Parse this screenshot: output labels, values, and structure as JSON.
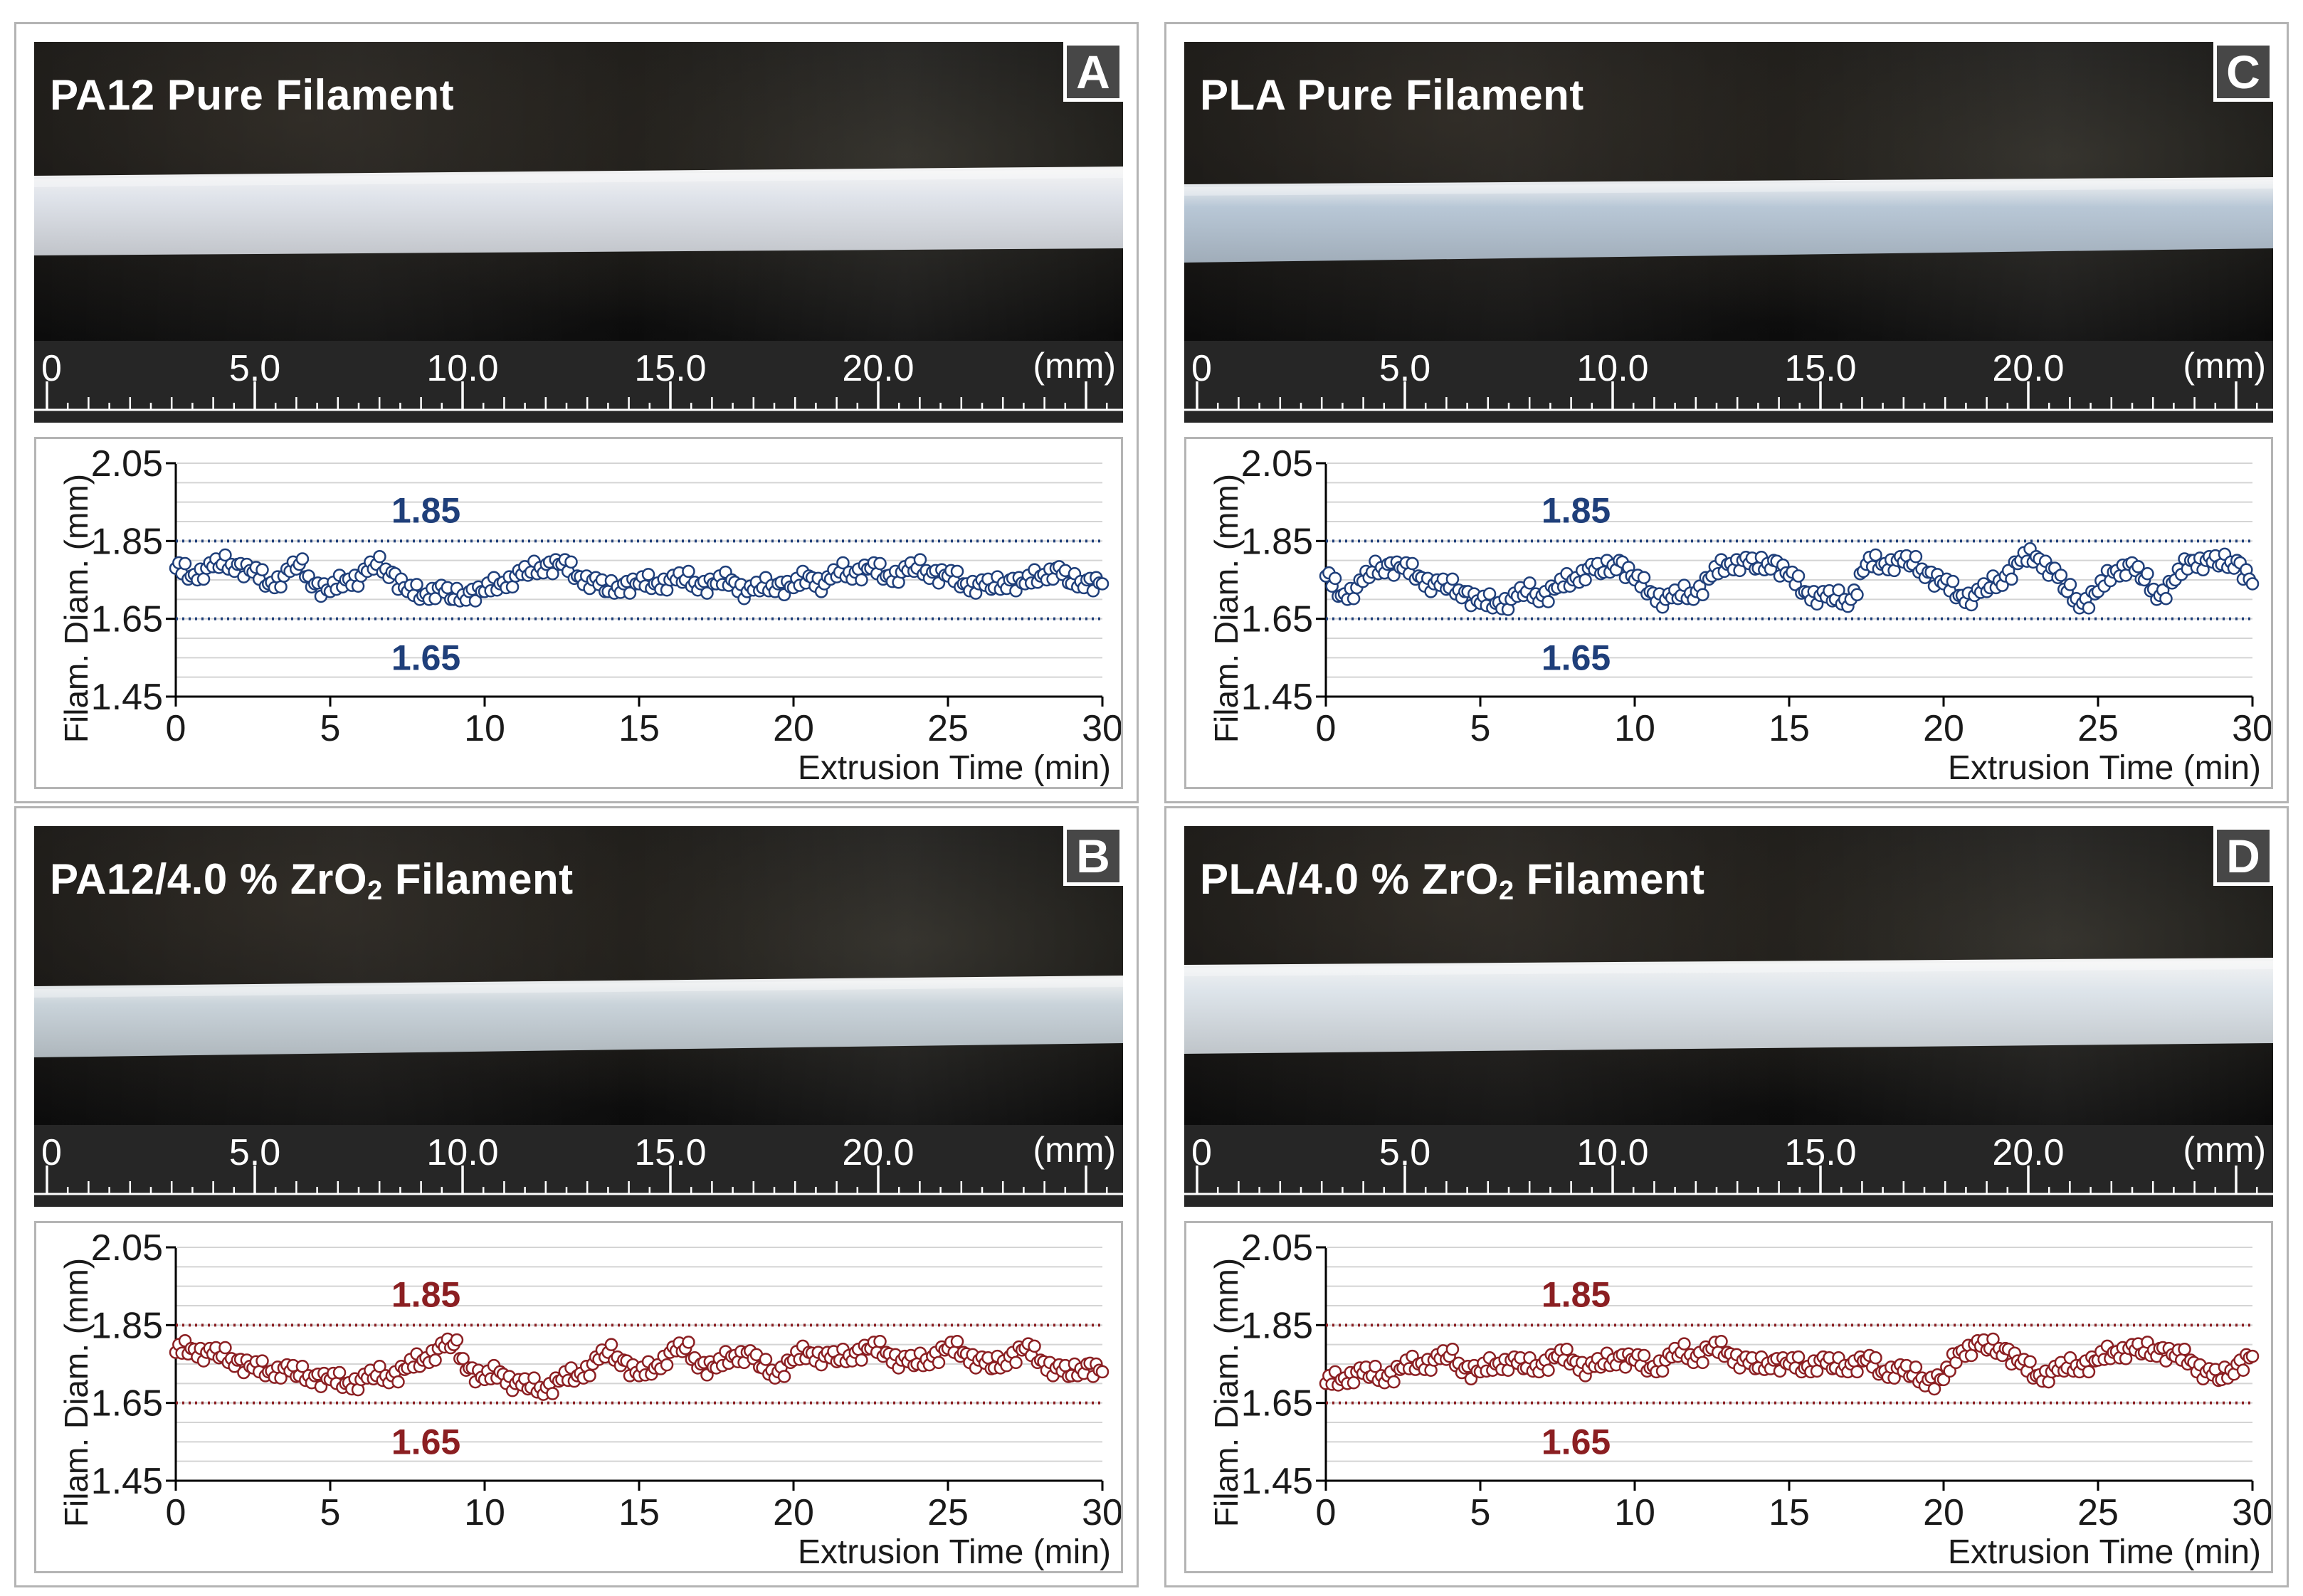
{
  "ruler": {
    "unit": "(mm)",
    "labels": [
      "0",
      "5.0",
      "10.0",
      "15.0",
      "20.0"
    ],
    "values": [
      0,
      5,
      10,
      15,
      20
    ]
  },
  "panels": [
    {
      "letter": "A",
      "title": "PA12 Pure Filament",
      "title_sub": "",
      "title_suffix": "",
      "color": "#1f3f7a",
      "filament_color": "#dfe3ea"
    },
    {
      "letter": "C",
      "title": "PLA Pure Filament",
      "title_sub": "",
      "title_suffix": "",
      "color": "#1f3f7a",
      "filament_color": "#b8c7d6"
    },
    {
      "letter": "B",
      "title": "PA12/4.0 % ZrO",
      "title_sub": "2",
      "title_suffix": " Filament",
      "color": "#8b1f22",
      "filament_color": "#c9d3da"
    },
    {
      "letter": "D",
      "title": "PLA/4.0 % ZrO",
      "title_sub": "2",
      "title_suffix": " Filament",
      "color": "#8b1f22",
      "filament_color": "#dde4ea"
    }
  ],
  "chart_data": [
    {
      "type": "scatter",
      "panel": "A",
      "xlabel": "Extrusion Time (min)",
      "ylabel": "Filam. Diam. (mm)",
      "xlim": [
        0,
        30
      ],
      "ylim": [
        1.45,
        2.05
      ],
      "xticks": [
        "0",
        "5",
        "10",
        "15",
        "20",
        "25",
        "30"
      ],
      "yticks": [
        "2.05",
        "1.85",
        "1.65",
        "1.45"
      ],
      "limits": [
        {
          "label": "1.85",
          "value": 1.85
        },
        {
          "label": "1.65",
          "value": 1.65
        }
      ],
      "series": [
        {
          "x": [
            0,
            0.5,
            1,
            1.5,
            2,
            2.5,
            3,
            3.5,
            4,
            4.5,
            5,
            5.5,
            6,
            6.5,
            7,
            7.5,
            8,
            8.5,
            9,
            9.5,
            10,
            10.5,
            11,
            11.5,
            12,
            12.5,
            13,
            13.5,
            14,
            14.5,
            15,
            15.5,
            16,
            16.5,
            17,
            17.5,
            18,
            18.5,
            19,
            19.5,
            20,
            20.5,
            21,
            21.5,
            22,
            22.5,
            23,
            23.5,
            24,
            24.5,
            25,
            25.5,
            26,
            26.5,
            27,
            27.5,
            28,
            28.5,
            29,
            29.5,
            30
          ],
          "y": [
            1.78,
            1.76,
            1.78,
            1.79,
            1.79,
            1.77,
            1.74,
            1.76,
            1.79,
            1.74,
            1.72,
            1.75,
            1.76,
            1.79,
            1.77,
            1.72,
            1.71,
            1.73,
            1.7,
            1.72,
            1.72,
            1.74,
            1.76,
            1.77,
            1.79,
            1.79,
            1.76,
            1.75,
            1.72,
            1.74,
            1.74,
            1.74,
            1.75,
            1.75,
            1.74,
            1.74,
            1.75,
            1.72,
            1.73,
            1.74,
            1.73,
            1.76,
            1.74,
            1.77,
            1.77,
            1.78,
            1.76,
            1.77,
            1.78,
            1.77,
            1.76,
            1.74,
            1.74,
            1.73,
            1.75,
            1.74,
            1.76,
            1.78,
            1.74,
            1.75,
            1.74
          ]
        }
      ]
    },
    {
      "type": "scatter",
      "panel": "C",
      "xlabel": "Extrusion Time (min)",
      "ylabel": "Filam. Diam. (mm)",
      "xlim": [
        0,
        30
      ],
      "ylim": [
        1.45,
        2.05
      ],
      "xticks": [
        "0",
        "5",
        "10",
        "15",
        "20",
        "25",
        "30"
      ],
      "yticks": [
        "2.05",
        "1.85",
        "1.65",
        "1.45"
      ],
      "limits": [
        {
          "label": "1.85",
          "value": 1.85
        },
        {
          "label": "1.65",
          "value": 1.65
        }
      ],
      "series": [
        {
          "x": [
            0,
            0.5,
            1,
            1.5,
            2,
            2.5,
            3,
            3.5,
            4,
            4.5,
            5,
            5.5,
            6,
            6.5,
            7,
            7.5,
            8,
            8.5,
            9,
            9.5,
            10,
            10.5,
            11,
            11.5,
            12,
            12.5,
            13,
            13.5,
            14,
            14.5,
            15,
            15.5,
            16,
            16.5,
            17,
            17.5,
            18,
            18.5,
            19,
            19.5,
            20,
            20.5,
            21,
            21.5,
            22,
            22.5,
            23,
            23.5,
            24,
            24.5,
            25,
            25.5,
            26,
            26.5,
            27,
            27.5,
            28,
            28.5,
            29,
            29.5,
            30
          ],
          "y": [
            1.76,
            1.71,
            1.73,
            1.77,
            1.79,
            1.78,
            1.76,
            1.74,
            1.73,
            1.72,
            1.69,
            1.69,
            1.7,
            1.72,
            1.71,
            1.73,
            1.75,
            1.78,
            1.77,
            1.8,
            1.75,
            1.72,
            1.7,
            1.71,
            1.72,
            1.76,
            1.79,
            1.8,
            1.78,
            1.8,
            1.76,
            1.72,
            1.71,
            1.7,
            1.7,
            1.79,
            1.79,
            1.8,
            1.79,
            1.77,
            1.74,
            1.71,
            1.71,
            1.73,
            1.76,
            1.8,
            1.81,
            1.78,
            1.72,
            1.69,
            1.72,
            1.77,
            1.79,
            1.75,
            1.71,
            1.75,
            1.8,
            1.8,
            1.79,
            1.8,
            1.74
          ]
        }
      ]
    },
    {
      "type": "scatter",
      "panel": "B",
      "xlabel": "Extrusion Time (min)",
      "ylabel": "Filam. Diam. (mm)",
      "xlim": [
        0,
        30
      ],
      "ylim": [
        1.45,
        2.05
      ],
      "xticks": [
        "0",
        "5",
        "10",
        "15",
        "20",
        "25",
        "30"
      ],
      "yticks": [
        "2.05",
        "1.85",
        "1.65",
        "1.45"
      ],
      "limits": [
        {
          "label": "1.85",
          "value": 1.85
        },
        {
          "label": "1.65",
          "value": 1.65
        }
      ],
      "series": [
        {
          "x": [
            0,
            0.5,
            1,
            1.5,
            2,
            2.5,
            3,
            3.5,
            4,
            4.5,
            5,
            5.5,
            6,
            6.5,
            7,
            7.5,
            8,
            8.5,
            9,
            9.5,
            10,
            10.5,
            11,
            11.5,
            12,
            12.5,
            13,
            13.5,
            14,
            14.5,
            15,
            15.5,
            16,
            16.5,
            17,
            17.5,
            18,
            18.5,
            19,
            19.5,
            20,
            20.5,
            21,
            21.5,
            22,
            22.5,
            23,
            23.5,
            24,
            24.5,
            25,
            25.5,
            26,
            26.5,
            27,
            27.5,
            28,
            28.5,
            29,
            29.5,
            30
          ],
          "y": [
            1.78,
            1.79,
            1.78,
            1.77,
            1.76,
            1.74,
            1.73,
            1.74,
            1.72,
            1.72,
            1.71,
            1.7,
            1.71,
            1.72,
            1.72,
            1.74,
            1.76,
            1.79,
            1.8,
            1.74,
            1.71,
            1.73,
            1.7,
            1.69,
            1.69,
            1.71,
            1.72,
            1.75,
            1.78,
            1.76,
            1.72,
            1.74,
            1.78,
            1.79,
            1.75,
            1.74,
            1.77,
            1.78,
            1.74,
            1.73,
            1.76,
            1.78,
            1.77,
            1.76,
            1.78,
            1.79,
            1.78,
            1.76,
            1.75,
            1.77,
            1.79,
            1.78,
            1.76,
            1.74,
            1.77,
            1.79,
            1.76,
            1.74,
            1.72,
            1.75,
            1.73
          ]
        }
      ]
    },
    {
      "type": "scatter",
      "panel": "D",
      "xlabel": "Extrusion Time (min)",
      "ylabel": "Filam. Diam. (mm)",
      "xlim": [
        0,
        30
      ],
      "ylim": [
        1.45,
        2.05
      ],
      "xticks": [
        "0",
        "5",
        "10",
        "15",
        "20",
        "25",
        "30"
      ],
      "yticks": [
        "2.05",
        "1.85",
        "1.65",
        "1.45"
      ],
      "limits": [
        {
          "label": "1.85",
          "value": 1.85
        },
        {
          "label": "1.65",
          "value": 1.65
        }
      ],
      "series": [
        {
          "x": [
            0,
            0.5,
            1,
            1.5,
            2,
            2.5,
            3,
            3.5,
            4,
            4.5,
            5,
            5.5,
            6,
            6.5,
            7,
            7.5,
            8,
            8.5,
            9,
            9.5,
            10,
            10.5,
            11,
            11.5,
            12,
            12.5,
            13,
            13.5,
            14,
            14.5,
            15,
            15.5,
            16,
            16.5,
            17,
            17.5,
            18,
            18.5,
            19,
            19.5,
            20,
            20.5,
            21,
            21.5,
            22,
            22.5,
            23,
            23.5,
            24,
            24.5,
            25,
            25.5,
            26,
            26.5,
            27,
            27.5,
            28,
            28.5,
            29,
            29.5,
            30
          ],
          "y": [
            1.7,
            1.71,
            1.73,
            1.72,
            1.72,
            1.74,
            1.75,
            1.76,
            1.77,
            1.74,
            1.73,
            1.75,
            1.76,
            1.74,
            1.75,
            1.77,
            1.76,
            1.74,
            1.75,
            1.77,
            1.76,
            1.74,
            1.76,
            1.78,
            1.77,
            1.79,
            1.78,
            1.76,
            1.74,
            1.76,
            1.75,
            1.74,
            1.76,
            1.74,
            1.75,
            1.76,
            1.73,
            1.74,
            1.72,
            1.71,
            1.71,
            1.78,
            1.8,
            1.79,
            1.79,
            1.75,
            1.72,
            1.73,
            1.74,
            1.75,
            1.76,
            1.78,
            1.79,
            1.78,
            1.79,
            1.77,
            1.76,
            1.73,
            1.71,
            1.75,
            1.77
          ]
        }
      ]
    }
  ]
}
